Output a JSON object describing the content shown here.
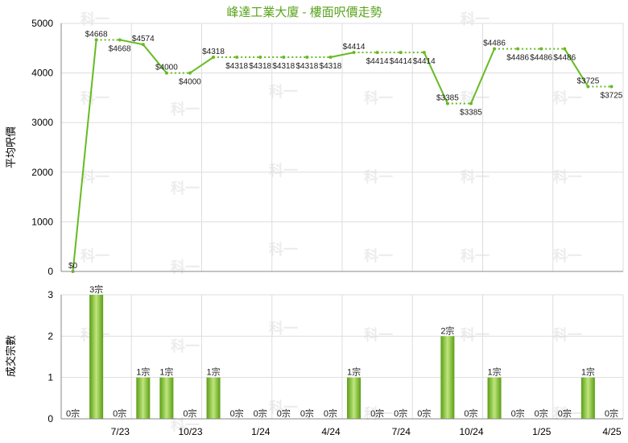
{
  "chart_data": [
    {
      "type": "line",
      "title": "峰達工業大廈 - 樓面呎價走勢",
      "ylabel": "平均呎價",
      "ylim": [
        0,
        5000
      ],
      "yticks": [
        0,
        1000,
        2000,
        3000,
        4000,
        5000
      ],
      "grid": true,
      "series": [
        {
          "values": [
            0,
            4668,
            4668,
            4574,
            4000,
            4000,
            4318,
            4318,
            4318,
            4318,
            4318,
            4318,
            4414,
            4414,
            4414,
            4414,
            3385,
            3385,
            4486,
            4486,
            4486,
            4486,
            3725,
            3725
          ],
          "labels": [
            "$0",
            "$4668",
            "$4668",
            "$4574",
            "$4000",
            "$4000",
            "$4318",
            "$4318",
            "$4318",
            "$4318",
            "$4318",
            "$4318",
            "$4414",
            "$4414",
            "$4414",
            "$4414",
            "$3385",
            "$3385",
            "$4486",
            "$4486",
            "$4486",
            "$4486",
            "$3725",
            "$3725"
          ],
          "estimated": [
            false,
            false,
            true,
            false,
            false,
            true,
            false,
            true,
            true,
            true,
            true,
            true,
            false,
            true,
            true,
            true,
            false,
            true,
            false,
            true,
            true,
            true,
            false,
            true
          ]
        }
      ],
      "color": "#66bb22"
    },
    {
      "type": "bar",
      "ylabel": "成交宗數",
      "ylim": [
        0,
        3
      ],
      "yticks": [
        0,
        1,
        2,
        3
      ],
      "grid": true,
      "values": [
        0,
        3,
        0,
        1,
        1,
        0,
        1,
        0,
        0,
        0,
        0,
        0,
        1,
        0,
        0,
        0,
        2,
        0,
        1,
        0,
        0,
        0,
        1,
        0
      ],
      "labels": [
        "0宗",
        "3宗",
        "0宗",
        "1宗",
        "1宗",
        "0宗",
        "1宗",
        "0宗",
        "0宗",
        "0宗",
        "0宗",
        "0宗",
        "1宗",
        "0宗",
        "0宗",
        "0宗",
        "2宗",
        "0宗",
        "1宗",
        "0宗",
        "0宗",
        "0宗",
        "1宗",
        "0宗"
      ],
      "color": "#66bb22"
    }
  ],
  "x_tick_labels": [
    "7/23",
    "10/23",
    "1/24",
    "4/24",
    "7/24",
    "10/24",
    "1/25",
    "4/25"
  ],
  "watermark": "科一"
}
